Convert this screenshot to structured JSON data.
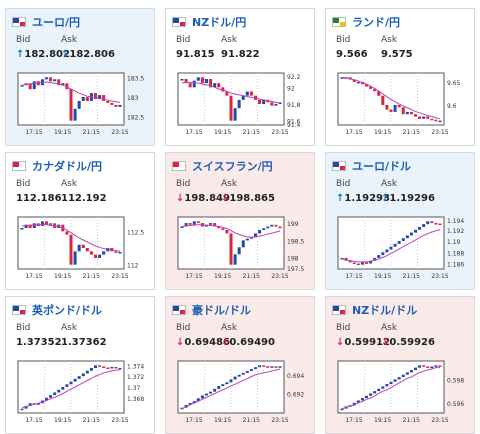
{
  "labels": {
    "bid": "Bid",
    "ask": "Ask"
  },
  "cards": [
    {
      "pair": "ユーロ/円",
      "bid": "182.802",
      "ask": "182.806",
      "bid_arrow": "↑",
      "ask_arrow": "↑",
      "trend": "up",
      "flag_colors": [
        "#1f4aa8",
        "#d7263d"
      ],
      "ticks": [
        "183.5",
        "183",
        "182.5"
      ],
      "xticks": [
        "17:15",
        "19:15",
        "21:15",
        "23:15"
      ],
      "candles": [
        183.3,
        183.35,
        183.2,
        183.4,
        183.3,
        183.45,
        183.5,
        183.4,
        183.45,
        183.3,
        183.35,
        183.2,
        182.4,
        182.7,
        182.9,
        183.0,
        182.9,
        183.1,
        182.95,
        183.05,
        182.9,
        182.85,
        182.8,
        182.75,
        182.8
      ],
      "ma": [
        183.3,
        183.32,
        183.33,
        183.35,
        183.36,
        183.37,
        183.38,
        183.37,
        183.35,
        183.33,
        183.3,
        183.26,
        183.2,
        183.15,
        183.1,
        183.06,
        183.02,
        183.0,
        182.98,
        182.96,
        182.94,
        182.92,
        182.9,
        182.88,
        182.86
      ]
    },
    {
      "pair": "NZドル/円",
      "bid": "91.815",
      "ask": "91.822",
      "bid_arrow": "",
      "ask_arrow": "",
      "trend": "neutral",
      "flag_colors": [
        "#1f4aa8",
        "#d7263d"
      ],
      "ticks": [
        "92.2",
        "92",
        "91.8",
        "91.6",
        "91.4"
      ],
      "xticks": [
        "17:15",
        "19:15",
        "21:15",
        "23:15"
      ],
      "candles": [
        92.1,
        92.05,
        92.0,
        92.08,
        92.12,
        92.05,
        92.1,
        92.0,
        92.05,
        92.0,
        91.95,
        91.9,
        91.6,
        91.75,
        91.85,
        91.9,
        91.95,
        91.9,
        91.85,
        91.8,
        91.85,
        91.82,
        91.78,
        91.8,
        91.82
      ],
      "ma": [
        92.05,
        92.06,
        92.06,
        92.05,
        92.05,
        92.04,
        92.03,
        92.02,
        92.0,
        91.98,
        91.97,
        91.95,
        91.93,
        91.92,
        91.91,
        91.9,
        91.89,
        91.88,
        91.87,
        91.86,
        91.85,
        91.84,
        91.83,
        91.82,
        91.81
      ]
    },
    {
      "pair": "ランド/円",
      "bid": "9.566",
      "ask": "9.575",
      "bid_arrow": "",
      "ask_arrow": "",
      "trend": "neutral",
      "flag_colors": [
        "#2e7d32",
        "#f2c200"
      ],
      "ticks": [
        "9.65",
        "9.6"
      ],
      "xticks": [
        "17:15",
        "19:15",
        "21:15",
        "23:15"
      ],
      "candles": [
        9.66,
        9.66,
        9.655,
        9.65,
        9.65,
        9.645,
        9.64,
        9.635,
        9.63,
        9.62,
        9.6,
        9.59,
        9.585,
        9.6,
        9.595,
        9.58,
        9.585,
        9.58,
        9.575,
        9.57,
        9.575,
        9.57,
        9.568,
        9.566,
        9.566
      ],
      "ma": [
        9.66,
        9.659,
        9.657,
        9.655,
        9.652,
        9.649,
        9.645,
        9.641,
        9.636,
        9.63,
        9.624,
        9.618,
        9.612,
        9.607,
        9.602,
        9.598,
        9.594,
        9.59,
        9.586,
        9.583,
        9.58,
        9.577,
        9.575,
        9.572,
        9.57
      ]
    },
    {
      "pair": "カナダドル/円",
      "bid": "112.186",
      "ask": "112.192",
      "bid_arrow": "",
      "ask_arrow": "",
      "trend": "neutral",
      "flag_colors": [
        "#d7263d",
        "#ffffff"
      ],
      "ticks": [
        "112.5",
        "112"
      ],
      "xticks": [
        "17:15",
        "19:15",
        "21:15",
        "23:15"
      ],
      "candles": [
        112.55,
        112.6,
        112.55,
        112.62,
        112.58,
        112.65,
        112.6,
        112.62,
        112.55,
        112.6,
        112.5,
        112.45,
        112.0,
        112.2,
        112.3,
        112.25,
        112.2,
        112.15,
        112.1,
        112.15,
        112.2,
        112.25,
        112.2,
        112.18,
        112.19
      ],
      "ma": [
        112.58,
        112.59,
        112.59,
        112.6,
        112.6,
        112.6,
        112.6,
        112.59,
        112.58,
        112.57,
        112.55,
        112.52,
        112.48,
        112.44,
        112.4,
        112.37,
        112.34,
        112.31,
        112.28,
        112.26,
        112.24,
        112.23,
        112.22,
        112.21,
        112.2
      ]
    },
    {
      "pair": "スイスフラン/円",
      "bid": "198.849",
      "ask": "198.865",
      "bid_arrow": "↓",
      "ask_arrow": "↓",
      "trend": "down",
      "flag_colors": [
        "#d7263d",
        "#ffffff"
      ],
      "ticks": [
        "199",
        "198.5",
        "198",
        "197.5"
      ],
      "xticks": [
        "17:15",
        "19:15",
        "21:15",
        "23:15"
      ],
      "candles": [
        198.9,
        199.0,
        198.95,
        199.05,
        199.0,
        198.9,
        198.95,
        199.0,
        198.9,
        198.85,
        198.8,
        198.7,
        197.8,
        198.1,
        198.3,
        198.5,
        198.55,
        198.6,
        198.7,
        198.8,
        198.85,
        198.9,
        198.95,
        198.9,
        198.85
      ],
      "ma": [
        198.9,
        198.92,
        198.93,
        198.94,
        198.95,
        198.95,
        198.94,
        198.93,
        198.92,
        198.9,
        198.88,
        198.84,
        198.78,
        198.72,
        198.67,
        198.63,
        198.6,
        198.59,
        198.6,
        198.62,
        198.65,
        198.68,
        198.71,
        198.74,
        198.77
      ]
    },
    {
      "pair": "ユーロ/ドル",
      "bid": "1.19293",
      "ask": "1.19296",
      "bid_arrow": "↑",
      "ask_arrow": "↑",
      "trend": "up",
      "flag_colors": [
        "#1f4aa8",
        "#d7263d"
      ],
      "ticks": [
        "1.194",
        "1.192",
        "1.19",
        "1.188",
        "1.186"
      ],
      "xticks": [
        "17:15",
        "19:15",
        "21:15",
        "23:15"
      ],
      "candles": [
        1.187,
        1.1865,
        1.1862,
        1.186,
        1.1858,
        1.1862,
        1.186,
        1.1865,
        1.187,
        1.1875,
        1.188,
        1.1885,
        1.189,
        1.1895,
        1.19,
        1.1905,
        1.191,
        1.1915,
        1.192,
        1.1925,
        1.193,
        1.1935,
        1.1932,
        1.1931,
        1.1929
      ],
      "ma": [
        1.1868,
        1.1866,
        1.1865,
        1.1864,
        1.1863,
        1.1863,
        1.1863,
        1.1864,
        1.1866,
        1.1868,
        1.1871,
        1.1874,
        1.1878,
        1.1882,
        1.1886,
        1.189,
        1.1894,
        1.1898,
        1.1902,
        1.1906,
        1.191,
        1.1913,
        1.1916,
        1.1918,
        1.192
      ]
    },
    {
      "pair": "英ポンド/ドル",
      "bid": "1.37352",
      "ask": "1.37362",
      "bid_arrow": "",
      "ask_arrow": "",
      "trend": "neutral",
      "flag_colors": [
        "#1f4aa8",
        "#d7263d"
      ],
      "ticks": [
        "1.374",
        "1.372",
        "1.37",
        "1.368"
      ],
      "xticks": [
        "17:15",
        "19:15",
        "21:15",
        "23:15"
      ],
      "candles": [
        1.366,
        1.3665,
        1.367,
        1.3668,
        1.367,
        1.3675,
        1.368,
        1.3685,
        1.369,
        1.3695,
        1.37,
        1.3705,
        1.371,
        1.3715,
        1.372,
        1.3725,
        1.373,
        1.3735,
        1.374,
        1.3738,
        1.3736,
        1.3735,
        1.3737,
        1.3735,
        1.3735
      ],
      "ma": [
        1.3662,
        1.3664,
        1.3666,
        1.3668,
        1.367,
        1.3672,
        1.3675,
        1.3678,
        1.3681,
        1.3684,
        1.3688,
        1.3692,
        1.3696,
        1.37,
        1.3704,
        1.3708,
        1.3712,
        1.3716,
        1.372,
        1.3723,
        1.3726,
        1.3728,
        1.373,
        1.3731,
        1.3732
      ]
    },
    {
      "pair": "豪ドル/ドル",
      "bid": "0.69486",
      "ask": "0.69490",
      "bid_arrow": "↓",
      "ask_arrow": "↓",
      "trend": "down",
      "flag_colors": [
        "#1f4aa8",
        "#d7263d"
      ],
      "ticks": [
        "0.694",
        "0.692"
      ],
      "xticks": [
        "17:15",
        "19:15",
        "21:15",
        "23:15"
      ],
      "candles": [
        0.6905,
        0.6908,
        0.691,
        0.6912,
        0.6915,
        0.6918,
        0.692,
        0.6922,
        0.6925,
        0.6928,
        0.693,
        0.6932,
        0.6935,
        0.6938,
        0.694,
        0.6942,
        0.6944,
        0.6946,
        0.6948,
        0.695,
        0.6949,
        0.6948,
        0.6949,
        0.6948,
        0.6949
      ],
      "ma": [
        0.6904,
        0.6906,
        0.6908,
        0.691,
        0.6912,
        0.6914,
        0.6916,
        0.6918,
        0.692,
        0.6922,
        0.6924,
        0.6926,
        0.6928,
        0.693,
        0.6932,
        0.6934,
        0.6936,
        0.6938,
        0.694,
        0.6941,
        0.6942,
        0.6943,
        0.6944,
        0.6945,
        0.6946
      ]
    },
    {
      "pair": "NZドル/ドル",
      "bid": "0.59912",
      "ask": "0.59926",
      "bid_arrow": "↓",
      "ask_arrow": "↓",
      "trend": "down",
      "flag_colors": [
        "#1f4aa8",
        "#d7263d"
      ],
      "ticks": [
        "0.598",
        "0.596"
      ],
      "xticks": [
        "17:15",
        "19:15",
        "21:15",
        "23:15"
      ],
      "candles": [
        0.5955,
        0.5957,
        0.5958,
        0.596,
        0.5962,
        0.5964,
        0.5966,
        0.5968,
        0.597,
        0.5972,
        0.5974,
        0.5976,
        0.5978,
        0.598,
        0.5982,
        0.5984,
        0.5986,
        0.5988,
        0.599,
        0.5992,
        0.5991,
        0.599,
        0.5991,
        0.5992,
        0.5991
      ],
      "ma": [
        0.5955,
        0.5956,
        0.5957,
        0.5958,
        0.596,
        0.5961,
        0.5963,
        0.5964,
        0.5966,
        0.5968,
        0.597,
        0.5971,
        0.5973,
        0.5975,
        0.5977,
        0.5979,
        0.5981,
        0.5982,
        0.5984,
        0.5986,
        0.5987,
        0.5988,
        0.5989,
        0.599,
        0.599
      ]
    }
  ]
}
